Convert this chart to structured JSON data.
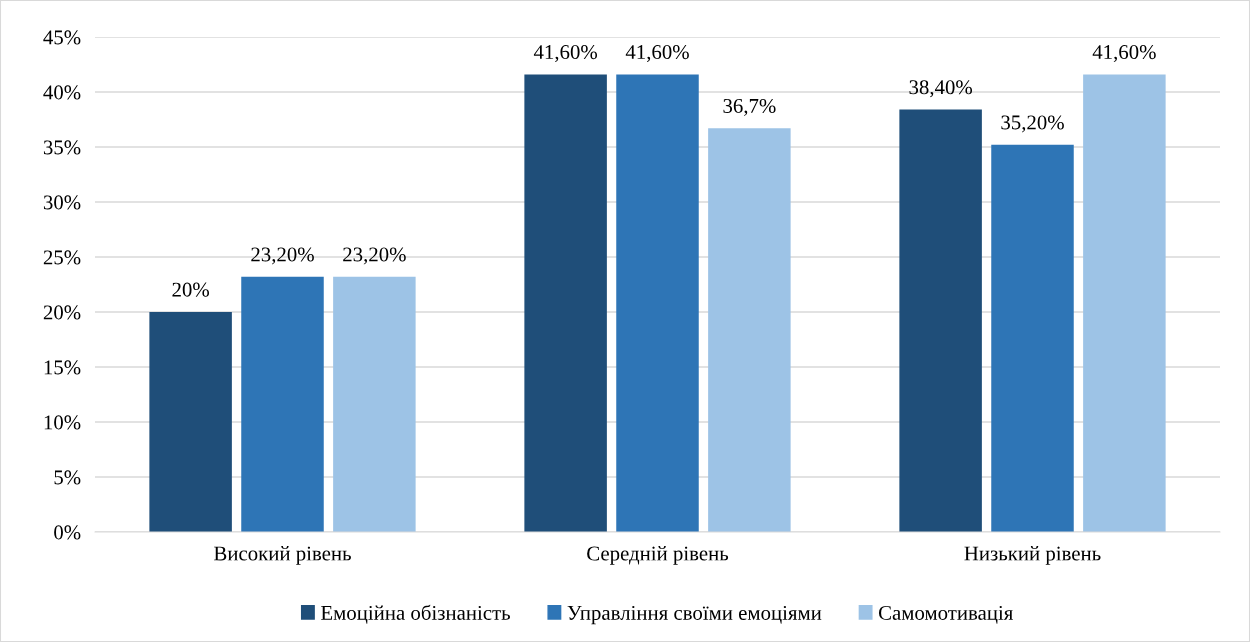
{
  "chart_data": {
    "type": "bar",
    "categories": [
      "Високий рівень",
      "Середній рівень",
      "Низький рівень"
    ],
    "series": [
      {
        "name": "Емоційна обізнаність",
        "color": "#1f4e79",
        "values": [
          20,
          41.6,
          38.4
        ],
        "value_labels": [
          "20%",
          "41,60%",
          "38,40%"
        ]
      },
      {
        "name": "Управління своїми емоціями",
        "color": "#2e75b6",
        "values": [
          23.2,
          41.6,
          35.2
        ],
        "value_labels": [
          "23,20%",
          "41,60%",
          "35,20%"
        ]
      },
      {
        "name": "Самомотивація",
        "color": "#9dc3e6",
        "values": [
          23.2,
          36.7,
          41.6
        ],
        "value_labels": [
          "23,20%",
          "36,7%",
          "41,60%"
        ]
      }
    ],
    "ylim": [
      0,
      45
    ],
    "yticks": [
      {
        "value": 0,
        "label": "0%"
      },
      {
        "value": 5,
        "label": "5%"
      },
      {
        "value": 10,
        "label": "10%"
      },
      {
        "value": 15,
        "label": "15%"
      },
      {
        "value": 20,
        "label": "20%"
      },
      {
        "value": 25,
        "label": "25%"
      },
      {
        "value": 30,
        "label": "30%"
      },
      {
        "value": 35,
        "label": "35%"
      },
      {
        "value": 40,
        "label": "40%"
      },
      {
        "value": 45,
        "label": "45%"
      }
    ],
    "grid": "y",
    "legend": "bottom"
  }
}
